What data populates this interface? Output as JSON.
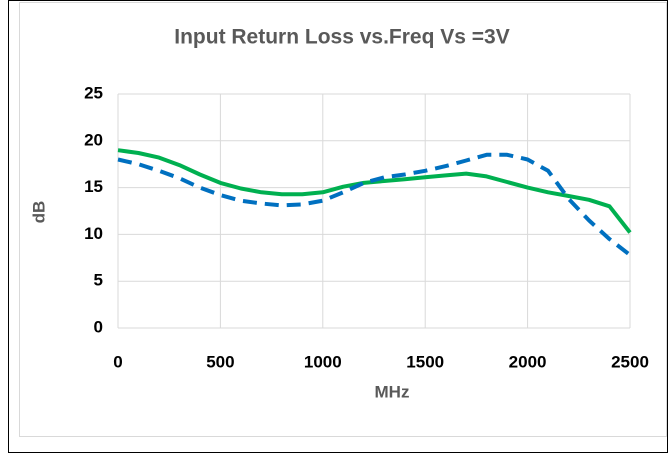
{
  "chart_data": {
    "type": "line",
    "title": "Input Return Loss vs.Freq Vs =3V",
    "x_label": "MHz",
    "y_label": "dB",
    "x": [
      0,
      100,
      200,
      300,
      400,
      500,
      600,
      700,
      800,
      900,
      1000,
      1100,
      1200,
      1300,
      1400,
      1500,
      1600,
      1700,
      1800,
      1900,
      2000,
      2100,
      2200,
      2300,
      2400,
      2500
    ],
    "series": [
      {
        "color": "#00b050",
        "line_style": "solid",
        "values": [
          19.0,
          18.7,
          18.2,
          17.4,
          16.4,
          15.5,
          14.9,
          14.5,
          14.3,
          14.3,
          14.5,
          15.1,
          15.5,
          15.7,
          15.9,
          16.1,
          16.3,
          16.5,
          16.2,
          15.6,
          15.0,
          14.5,
          14.1,
          13.7,
          13.0,
          10.2
        ]
      },
      {
        "color": "#0070c0",
        "line_style": "dashed",
        "values": [
          18.0,
          17.5,
          16.8,
          16.0,
          15.0,
          14.2,
          13.6,
          13.3,
          13.1,
          13.2,
          13.6,
          14.5,
          15.5,
          16.1,
          16.4,
          16.8,
          17.3,
          17.9,
          18.5,
          18.5,
          18.0,
          16.8,
          13.8,
          11.5,
          9.5,
          7.8
        ]
      }
    ],
    "xlim": [
      0,
      2500
    ],
    "xticks": [
      0,
      500,
      1000,
      1500,
      2000,
      2500
    ],
    "ylim": [
      0,
      25
    ],
    "yticks": [
      0,
      5,
      10,
      15,
      20,
      25
    ],
    "grid": true
  }
}
